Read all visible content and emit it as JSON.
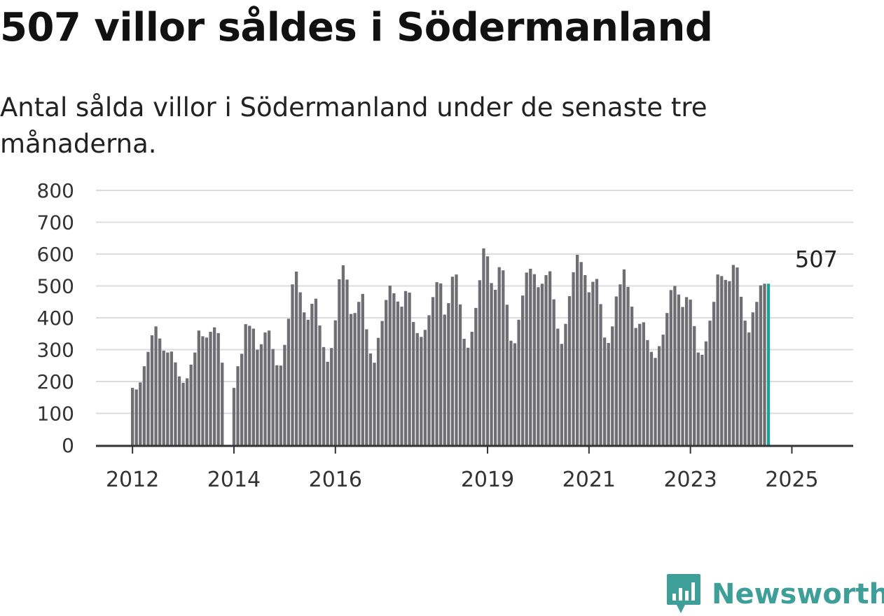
{
  "header": {
    "title": "507 villor såldes i Södermanland",
    "subtitle": "Antal sålda villor i Södermanland under de senaste tre månaderna."
  },
  "brand": {
    "name": "Newsworthy",
    "color": "#3e9e98",
    "icon": "bar-chart-speech-bubble-icon"
  },
  "colors": {
    "bar": "#6e6e73",
    "highlight": "#1aa29a",
    "grid": "#dcdcdc",
    "axis": "#333333"
  },
  "chart_data": {
    "type": "bar",
    "title": "507 villor såldes i Södermanland",
    "subtitle": "Antal sålda villor i Södermanland under de senaste tre månaderna.",
    "ylim": [
      0,
      800
    ],
    "yticks": [
      0,
      100,
      200,
      300,
      400,
      500,
      600,
      700,
      800
    ],
    "xtick_labels": [
      {
        "label": "2012",
        "index": 0
      },
      {
        "label": "2014",
        "index": 26
      },
      {
        "label": "2016",
        "index": 52
      },
      {
        "label": "2019",
        "index": 91
      },
      {
        "label": "2021",
        "index": 117
      },
      {
        "label": "2023",
        "index": 143
      },
      {
        "label": "2025",
        "index": 169
      }
    ],
    "grid": true,
    "highlight_last": true,
    "last_value_label": "507",
    "values": [
      180,
      175,
      197,
      248,
      293,
      345,
      373,
      335,
      297,
      291,
      294,
      260,
      216,
      196,
      210,
      253,
      291,
      360,
      342,
      338,
      356,
      370,
      352,
      259,
      0,
      0,
      180,
      248,
      287,
      380,
      375,
      366,
      300,
      317,
      354,
      360,
      302,
      251,
      250,
      315,
      397,
      505,
      545,
      480,
      417,
      394,
      444,
      460,
      376,
      308,
      262,
      305,
      392,
      521,
      565,
      520,
      412,
      415,
      450,
      475,
      364,
      288,
      259,
      337,
      390,
      456,
      501,
      477,
      451,
      435,
      484,
      479,
      387,
      352,
      340,
      362,
      408,
      465,
      512,
      508,
      410,
      446,
      529,
      536,
      442,
      334,
      306,
      356,
      431,
      518,
      618,
      593,
      509,
      488,
      559,
      549,
      441,
      328,
      320,
      394,
      470,
      542,
      554,
      537,
      496,
      507,
      534,
      546,
      458,
      366,
      318,
      381,
      468,
      543,
      598,
      575,
      534,
      480,
      513,
      522,
      443,
      338,
      321,
      373,
      467,
      505,
      552,
      497,
      435,
      368,
      381,
      386,
      330,
      293,
      274,
      311,
      347,
      415,
      487,
      500,
      473,
      434,
      465,
      457,
      374,
      291,
      284,
      326,
      391,
      450,
      536,
      531,
      519,
      515,
      566,
      558,
      466,
      391,
      354,
      417,
      450,
      502,
      507,
      507
    ]
  }
}
